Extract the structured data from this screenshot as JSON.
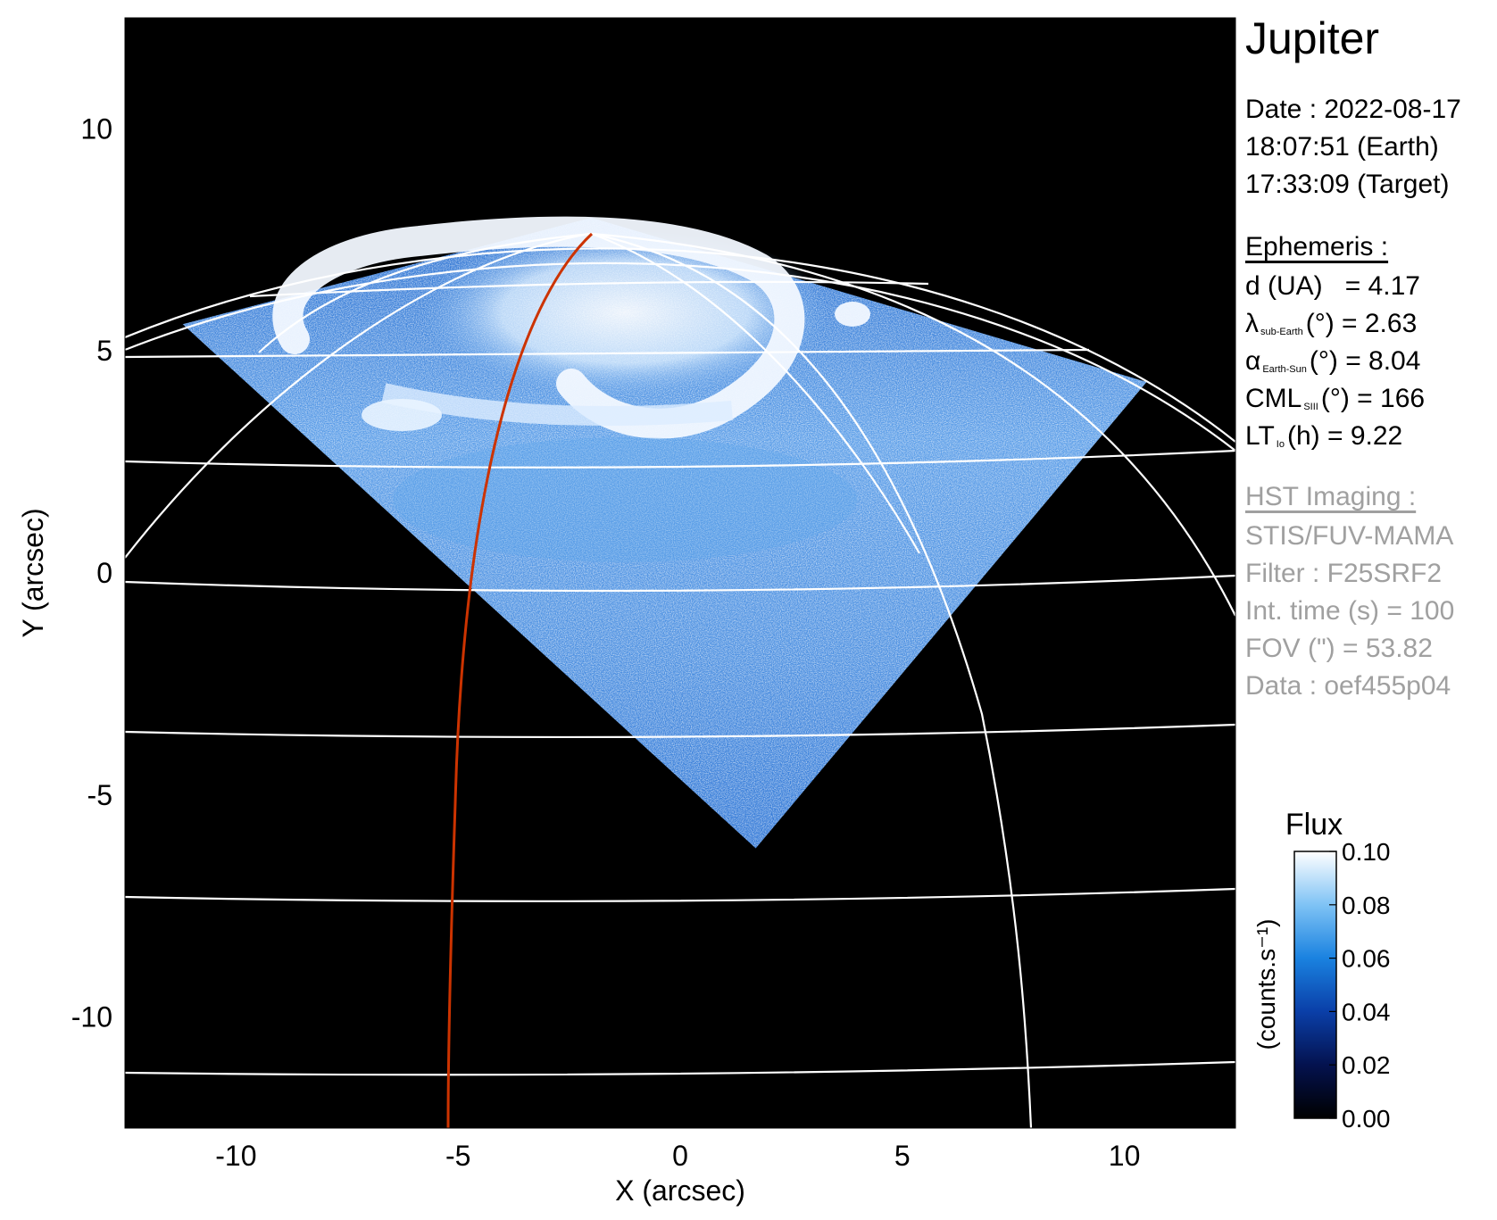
{
  "chart_data": {
    "type": "heatmap",
    "title": "",
    "xlabel": "X (arcsec)",
    "ylabel": "Y (arcsec)",
    "xlim": [
      -12.5,
      12.5
    ],
    "ylim": [
      -12.5,
      12.5
    ],
    "xticks": [
      -10,
      -5,
      0,
      5,
      10
    ],
    "yticks": [
      -10,
      -5,
      0,
      5,
      10
    ],
    "image_footprint": [
      [
        -11.2,
        5.6
      ],
      [
        -2.0,
        8.0
      ],
      [
        10.5,
        4.3
      ],
      [
        1.7,
        -6.2
      ]
    ],
    "colorbar": {
      "label": "Flux",
      "unit": "(counts.s⁻¹)",
      "range": [
        0.0,
        0.1
      ],
      "ticks": [
        "0.00",
        "0.02",
        "0.04",
        "0.06",
        "0.08",
        "0.10"
      ],
      "colors": [
        "#000000",
        "#04124f",
        "#0a3fa8",
        "#1a82e0",
        "#7fc3f5",
        "#ffffff"
      ]
    },
    "overlays": {
      "grid_color": "#ffffff",
      "footprint_line_color": "#cc3300"
    }
  },
  "info": {
    "target": "Jupiter",
    "date": "Date : 2022-08-17",
    "time_earth": "18:07:51 (Earth)",
    "time_target": "17:33:09 (Target)",
    "ephemeris_title": "Ephemeris :",
    "distance": {
      "label": "d (UA)",
      "value": "= 4.17"
    },
    "lambda": {
      "symbol": "λ",
      "sub": "sub-Earth",
      "rest": "(°) = 2.63"
    },
    "alpha": {
      "symbol": "α",
      "sub": "Earth-Sun",
      "rest": "(°) = 8.04"
    },
    "cml": {
      "symbol": "CML",
      "sub": "SIII",
      "rest": "(°) = 166"
    },
    "lt": {
      "symbol": "LT",
      "sub": "Io",
      "rest": "(h) = 9.22"
    },
    "hst_title": "HST Imaging :",
    "instrument": "STIS/FUV-MAMA",
    "filter": "Filter : F25SRF2",
    "int_time": "Int. time (s) = 100",
    "fov": "FOV (\") = 53.82",
    "data_id": "Data : oef455p04"
  }
}
